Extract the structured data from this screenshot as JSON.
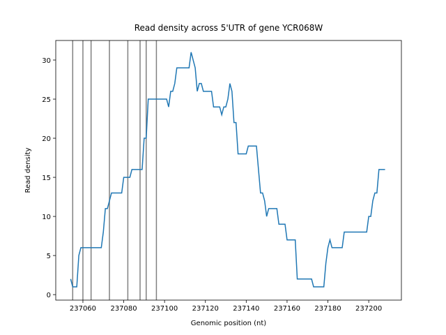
{
  "chart_data": {
    "type": "line",
    "title": "Read density across 5'UTR of gene YCR068W",
    "x_label": "Genomic position (nt)",
    "y_label": "Read density",
    "xlim": [
      237046.7,
      237216
    ],
    "ylim": [
      -0.7,
      32.5
    ],
    "xticks": [
      237060,
      237080,
      237100,
      237120,
      237140,
      237160,
      237180,
      237200
    ],
    "yticks": [
      0,
      5,
      10,
      15,
      20,
      25,
      30
    ],
    "vlines": [
      237055,
      237060,
      237064,
      237073,
      237082,
      237088,
      237091,
      237096
    ],
    "vline_color": "#808080",
    "series": [
      {
        "color": "#1f77b4",
        "x": [
          237054,
          237055,
          237056,
          237057,
          237058,
          237059,
          237060,
          237061,
          237062,
          237063,
          237064,
          237065,
          237066,
          237067,
          237068,
          237069,
          237070,
          237071,
          237072,
          237073,
          237074,
          237075,
          237076,
          237077,
          237078,
          237079,
          237080,
          237081,
          237082,
          237083,
          237084,
          237085,
          237086,
          237087,
          237088,
          237089,
          237090,
          237091,
          237092,
          237093,
          237094,
          237095,
          237096,
          237097,
          237098,
          237099,
          237100,
          237101,
          237102,
          237103,
          237104,
          237105,
          237106,
          237107,
          237108,
          237109,
          237110,
          237111,
          237112,
          237113,
          237114,
          237115,
          237116,
          237117,
          237118,
          237119,
          237120,
          237121,
          237122,
          237123,
          237124,
          237125,
          237126,
          237127,
          237128,
          237129,
          237130,
          237131,
          237132,
          237133,
          237134,
          237135,
          237136,
          237137,
          237138,
          237139,
          237140,
          237141,
          237142,
          237143,
          237144,
          237145,
          237146,
          237147,
          237148,
          237149,
          237150,
          237151,
          237152,
          237153,
          237154,
          237155,
          237156,
          237157,
          237158,
          237159,
          237160,
          237161,
          237162,
          237163,
          237164,
          237165,
          237166,
          237167,
          237168,
          237169,
          237170,
          237171,
          237172,
          237173,
          237174,
          237175,
          237176,
          237177,
          237178,
          237179,
          237180,
          237181,
          237182,
          237183,
          237184,
          237185,
          237186,
          237187,
          237188,
          237189,
          237190,
          237191,
          237192,
          237193,
          237194,
          237195,
          237196,
          237197,
          237198,
          237199,
          237200,
          237201,
          237202,
          237203,
          237204,
          237205,
          237206,
          237207,
          237208
        ],
        "values": [
          2,
          1,
          1,
          1,
          5,
          6,
          6,
          6,
          6,
          6,
          6,
          6,
          6,
          6,
          6,
          6,
          8,
          11,
          11,
          12,
          13,
          13,
          13,
          13,
          13,
          13,
          15,
          15,
          15,
          15,
          16,
          16,
          16,
          16,
          16,
          16,
          20,
          20,
          25,
          25,
          25,
          25,
          25,
          25,
          25,
          25,
          25,
          25,
          24,
          26,
          26,
          27,
          29,
          29,
          29,
          29,
          29,
          29,
          29,
          31,
          30,
          29,
          26,
          27,
          27,
          26,
          26,
          26,
          26,
          26,
          24,
          24,
          24,
          24,
          23,
          24,
          24,
          25,
          27,
          26,
          22,
          22,
          18,
          18,
          18,
          18,
          18,
          19,
          19,
          19,
          19,
          19,
          16,
          13,
          13,
          12,
          10,
          11,
          11,
          11,
          11,
          11,
          9,
          9,
          9,
          9,
          7,
          7,
          7,
          7,
          7,
          2,
          2,
          2,
          2,
          2,
          2,
          2,
          2,
          1,
          1,
          1,
          1,
          1,
          1,
          4,
          6,
          7,
          6,
          6,
          6,
          6,
          6,
          6,
          8,
          8,
          8,
          8,
          8,
          8,
          8,
          8,
          8,
          8,
          8,
          8,
          10,
          10,
          12,
          13,
          13,
          16,
          16,
          16,
          16
        ]
      }
    ]
  }
}
